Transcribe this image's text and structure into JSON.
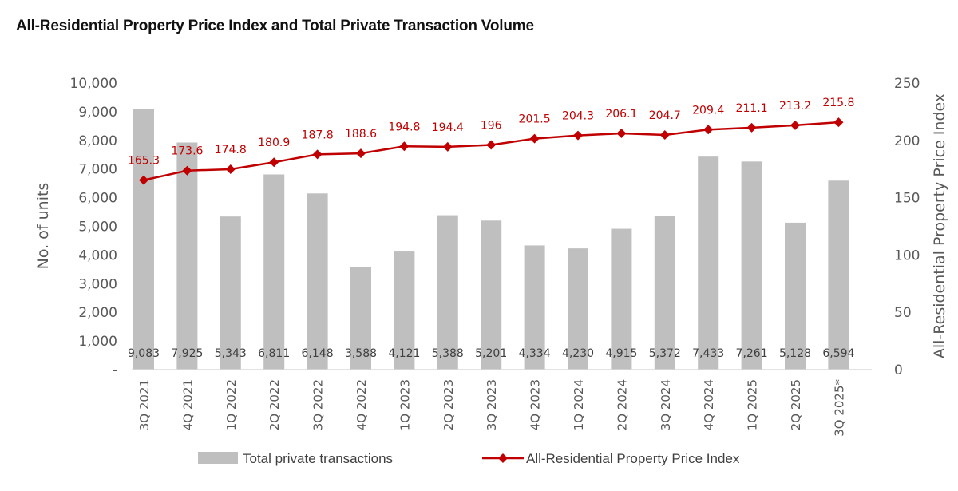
{
  "chart_data": {
    "type": "bar+line",
    "title": "All-Residential Property Price Index and Total Private Transaction Volume",
    "categories": [
      "3Q 2021",
      "4Q 2021",
      "1Q 2022",
      "2Q 2022",
      "3Q 2022",
      "4Q 2022",
      "1Q 2023",
      "2Q 2023",
      "3Q 2023",
      "4Q 2023",
      "1Q 2024",
      "2Q 2024",
      "3Q 2024",
      "4Q 2024",
      "1Q 2025",
      "2Q 2025",
      "3Q 2025*"
    ],
    "series": [
      {
        "name": "Total private transactions",
        "type": "bar",
        "axis": "left",
        "color": "#bfbfbf",
        "values": [
          9083,
          7925,
          5343,
          6811,
          6148,
          3588,
          4121,
          5388,
          5201,
          4334,
          4230,
          4915,
          5372,
          7433,
          7261,
          5128,
          6594
        ],
        "labels": [
          "9,083",
          "7,925",
          "5,343",
          "6,811",
          "6,148",
          "3,588",
          "4,121",
          "5,388",
          "5,201",
          "4,334",
          "4,230",
          "4,915",
          "5,372",
          "7,433",
          "7,261",
          "5,128",
          "6,594"
        ]
      },
      {
        "name": "All-Residential Property Price Index",
        "type": "line",
        "axis": "right",
        "color": "#c00000",
        "values": [
          165.3,
          173.6,
          174.8,
          180.9,
          187.8,
          188.6,
          194.8,
          194.4,
          196,
          201.5,
          204.3,
          206.1,
          204.7,
          209.4,
          211.1,
          213.2,
          215.8
        ],
        "labels": [
          "165.3",
          "173.6",
          "174.8",
          "180.9",
          "187.8",
          "188.6",
          "194.8",
          "194.4",
          "196",
          "201.5",
          "204.3",
          "206.1",
          "204.7",
          "209.4",
          "211.1",
          "213.2",
          "215.8"
        ]
      }
    ],
    "ylabel": "No. of units",
    "y2label": "All-Residential Property Price Index",
    "ylim": [
      0,
      10000
    ],
    "y2lim": [
      0,
      250
    ],
    "yticks": [
      0,
      1000,
      2000,
      3000,
      4000,
      5000,
      6000,
      7000,
      8000,
      9000,
      10000
    ],
    "ytick_labels": [
      "-",
      "1,000",
      "2,000",
      "3,000",
      "4,000",
      "5,000",
      "6,000",
      "7,000",
      "8,000",
      "9,000",
      "10,000"
    ],
    "y2ticks": [
      0,
      50,
      100,
      150,
      200,
      250
    ],
    "y2tick_labels": [
      "0",
      "50",
      "100",
      "150",
      "200",
      "250"
    ],
    "grid": false,
    "legend_position": "bottom"
  }
}
